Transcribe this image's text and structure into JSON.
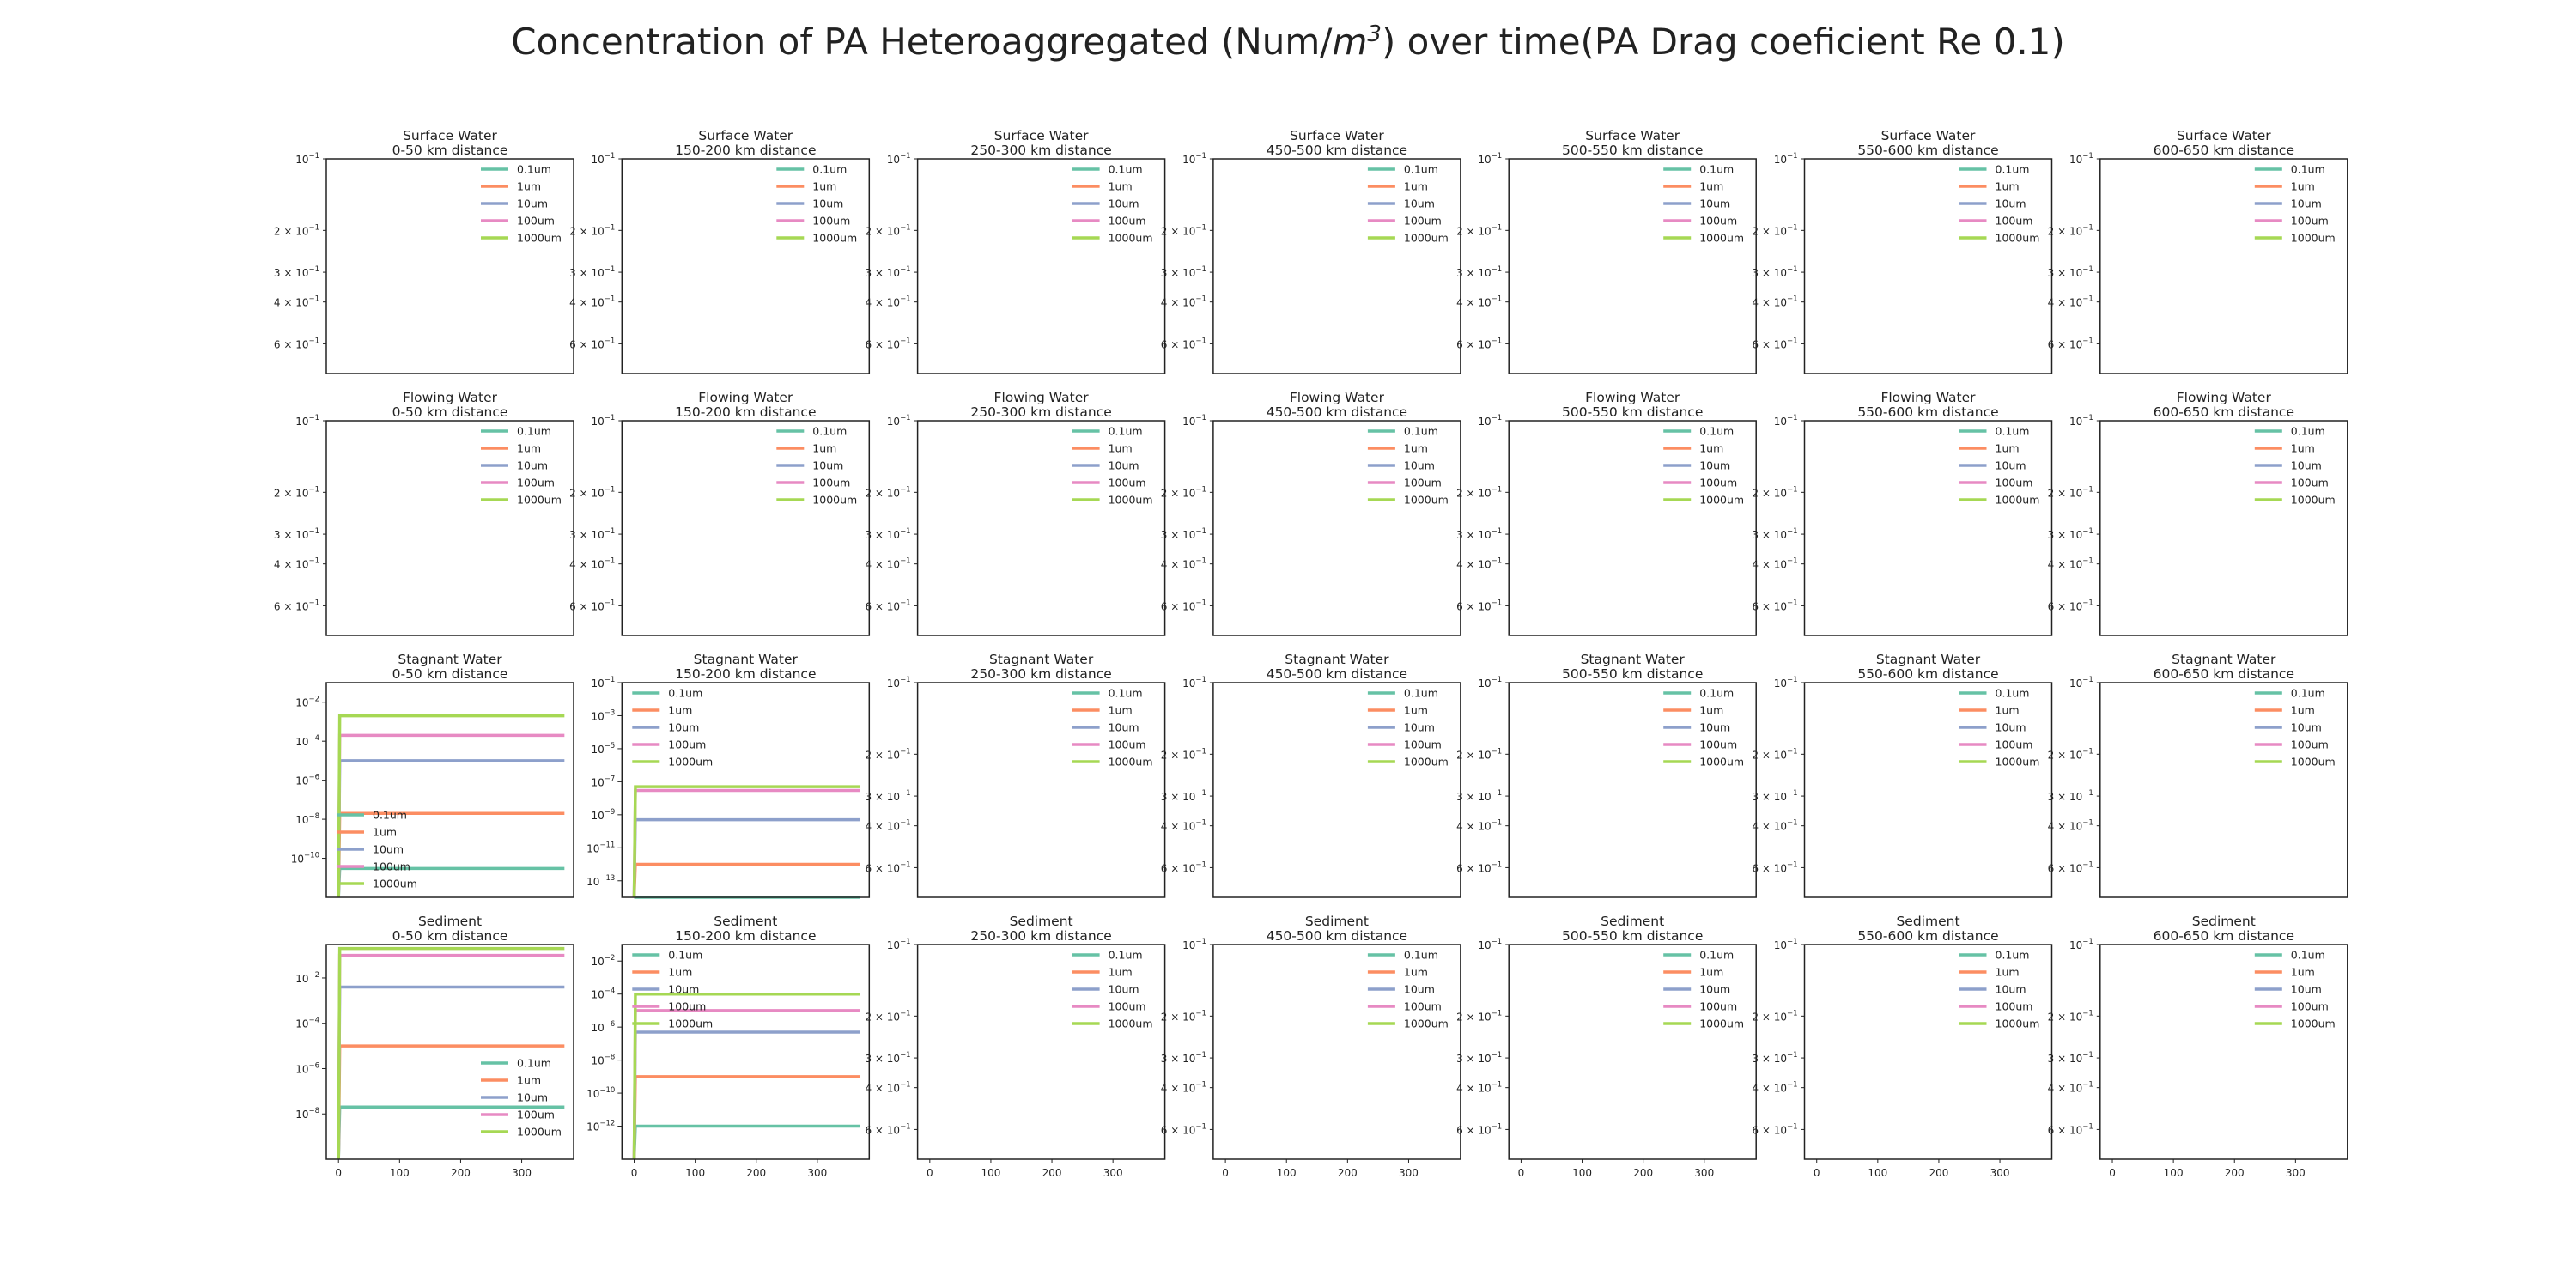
{
  "figure": {
    "title_prefix": "Concentration of PA Heteroaggregated (Num/",
    "title_unit": "m",
    "title_exp": "3",
    "title_suffix": ") over time(PA Drag coeficient Re 0.1)"
  },
  "legend_labels": [
    "0.1um",
    "1um",
    "10um",
    "100um",
    "1000um"
  ],
  "series_colors": [
    "#66c2a5",
    "#fc8d62",
    "#8da0cb",
    "#e78ac3",
    "#a6d854"
  ],
  "chart_data": {
    "type": "line",
    "layout": "4x7 small multiples",
    "compartments": [
      "Surface Water",
      "Flowing Water",
      "Stagnant Water",
      "Sediment"
    ],
    "distances": [
      "0-50 km distance",
      "150-200 km distance",
      "250-300 km distance",
      "450-500 km distance",
      "500-550 km distance",
      "550-600 km distance",
      "600-650 km distance"
    ],
    "x_ticks": [
      0,
      100,
      200,
      300
    ],
    "xlim": [
      -20,
      385
    ],
    "y_scale": "log",
    "grid": false,
    "empty_panel_yticks": [
      {
        "value": 0.1,
        "mant": "",
        "exp": "-1"
      },
      {
        "value": 0.2,
        "mant": "2 × ",
        "exp": "-1"
      },
      {
        "value": 0.3,
        "mant": "3 × ",
        "exp": "-1"
      },
      {
        "value": 0.4,
        "mant": "4 × ",
        "exp": "-1"
      },
      {
        "value": 0.6,
        "mant": "6 × ",
        "exp": "-1"
      }
    ],
    "panels_with_data": [
      {
        "compartment": "Stagnant Water",
        "distance": "0-50 km distance",
        "ylim": [
          1e-12,
          0.1
        ],
        "yticks": [
          -10,
          -8,
          -6,
          -4,
          -2
        ],
        "legend_position": "lower-left",
        "series": [
          {
            "name": "0.1um",
            "steady_value": 3e-11
          },
          {
            "name": "1um",
            "steady_value": 2e-08
          },
          {
            "name": "10um",
            "steady_value": 1e-05
          },
          {
            "name": "100um",
            "steady_value": 0.0002
          },
          {
            "name": "1000um",
            "steady_value": 0.002
          }
        ]
      },
      {
        "compartment": "Stagnant Water",
        "distance": "150-200 km distance",
        "ylim": [
          1e-14,
          0.1
        ],
        "yticks": [
          -13,
          -11,
          -9,
          -7,
          -5,
          -3,
          -1
        ],
        "legend_position": "upper-left",
        "series": [
          {
            "name": "0.1um",
            "steady_value": 1e-14
          },
          {
            "name": "1um",
            "steady_value": 1e-12
          },
          {
            "name": "10um",
            "steady_value": 5e-10
          },
          {
            "name": "100um",
            "steady_value": 3e-08
          },
          {
            "name": "1000um",
            "steady_value": 5e-08
          }
        ]
      },
      {
        "compartment": "Sediment",
        "distance": "0-50 km distance",
        "ylim": [
          1e-10,
          0.3
        ],
        "yticks": [
          -8,
          -6,
          -4,
          -2
        ],
        "legend_position": "lower-right",
        "series": [
          {
            "name": "0.1um",
            "steady_value": 2e-08
          },
          {
            "name": "1um",
            "steady_value": 1e-05
          },
          {
            "name": "10um",
            "steady_value": 0.004
          },
          {
            "name": "100um",
            "steady_value": 0.1
          },
          {
            "name": "1000um",
            "steady_value": 0.2
          }
        ]
      },
      {
        "compartment": "Sediment",
        "distance": "150-200 km distance",
        "ylim": [
          1e-14,
          0.1
        ],
        "yticks": [
          -12,
          -10,
          -8,
          -6,
          -4,
          -2
        ],
        "legend_position": "upper-left",
        "series": [
          {
            "name": "0.1um",
            "steady_value": 1e-12
          },
          {
            "name": "1um",
            "steady_value": 1e-09
          },
          {
            "name": "10um",
            "steady_value": 5e-07
          },
          {
            "name": "100um",
            "steady_value": 1e-05
          },
          {
            "name": "1000um",
            "steady_value": 0.0001
          }
        ]
      }
    ]
  }
}
